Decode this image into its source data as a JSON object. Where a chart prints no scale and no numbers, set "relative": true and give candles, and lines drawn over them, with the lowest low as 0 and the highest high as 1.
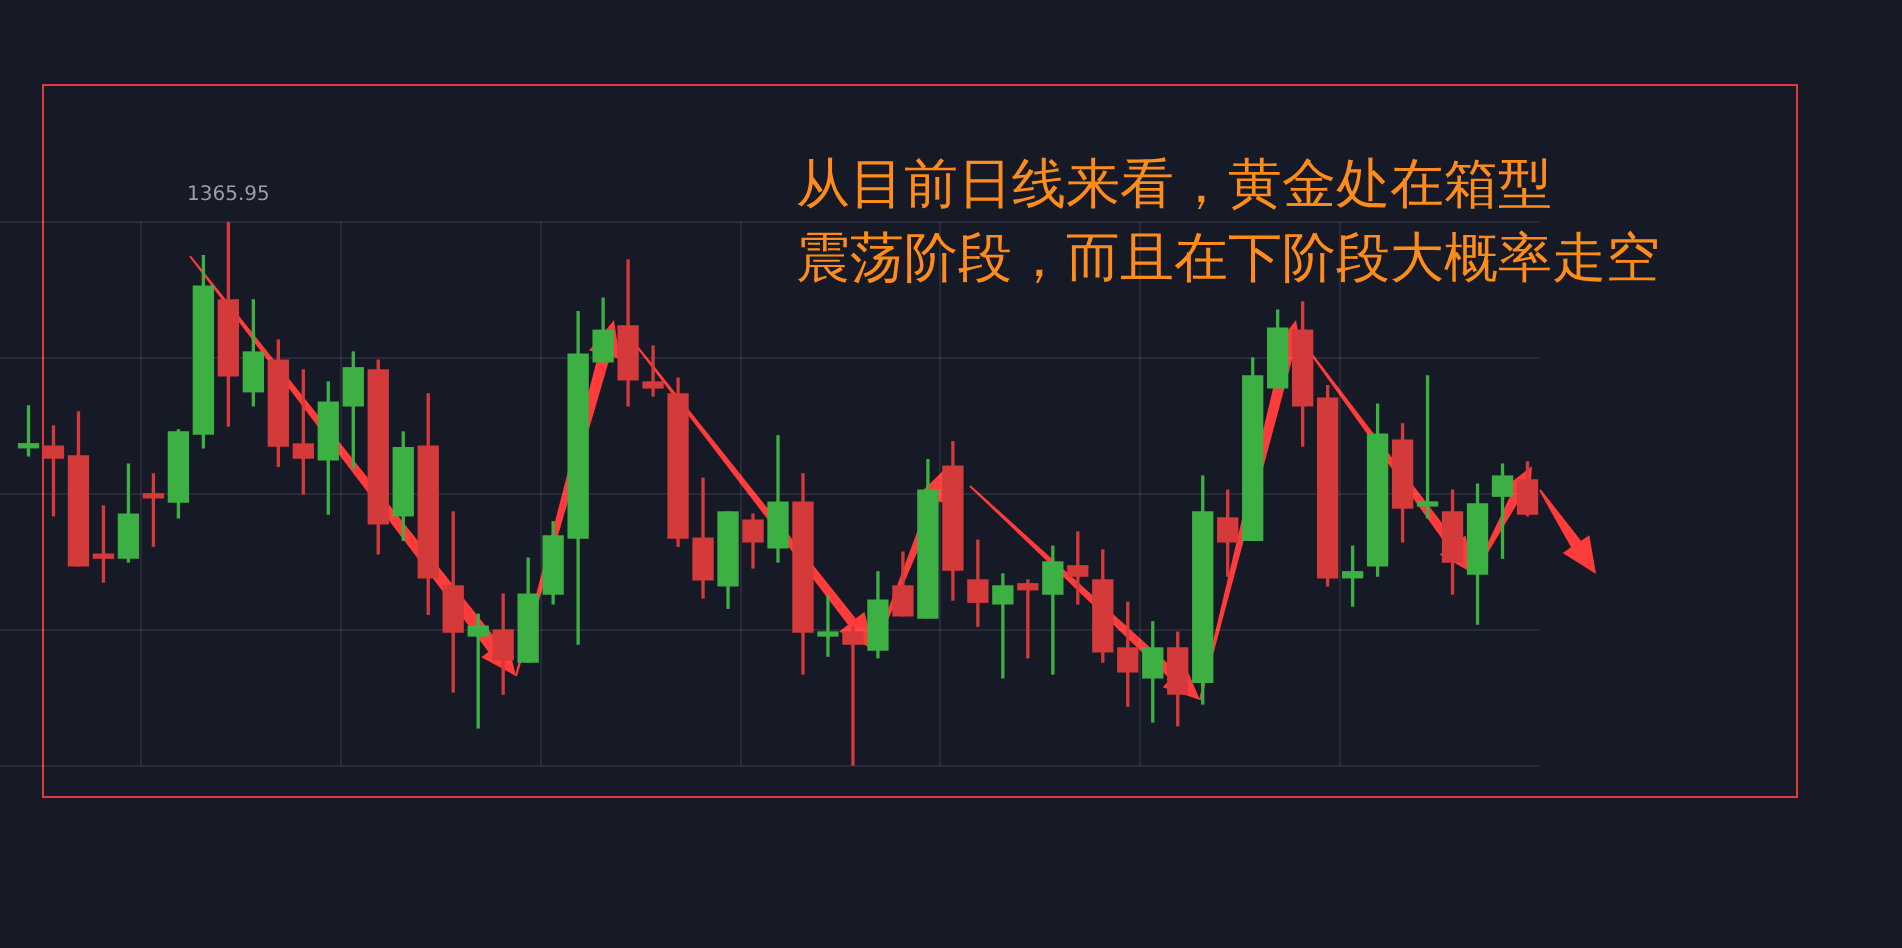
{
  "chart_data": {
    "type": "candlestick",
    "relative": true,
    "grid": true,
    "legend": false,
    "annotations": [
      "从目前日线来看，黄金处在箱型",
      "震荡阶段，而且在下阶段大概率走空",
      {
        "text": "1365.95",
        "y": 1
      }
    ],
    "categories": [
      null,
      null,
      null,
      null,
      null,
      null,
      null,
      null,
      null,
      null,
      null,
      null,
      null,
      null,
      null,
      null,
      null,
      null,
      null,
      null,
      null,
      null,
      null,
      null,
      null,
      null,
      null,
      null,
      null,
      null,
      null,
      null,
      null,
      null,
      null,
      null,
      null,
      null,
      null,
      null,
      null,
      null,
      null,
      null,
      null,
      null,
      null,
      null,
      null,
      null,
      null,
      null,
      null,
      null,
      null,
      null,
      null,
      null,
      null,
      null,
      null
    ],
    "ohlc": [
      [
        0.585,
        0.662,
        0.57,
        0.592
      ],
      [
        0.588,
        0.625,
        0.46,
        0.566
      ],
      [
        0.57,
        0.651,
        0.368,
        0.368
      ],
      [
        0.386,
        0.478,
        0.338,
        0.382
      ],
      [
        0.382,
        0.555,
        0.375,
        0.463
      ],
      [
        0.496,
        0.537,
        0.404,
        0.493
      ],
      [
        0.485,
        0.618,
        0.456,
        0.614
      ],
      [
        0.61,
        0.938,
        0.585,
        0.882
      ],
      [
        0.857,
        1,
        0.625,
        0.717
      ],
      [
        0.688,
        0.857,
        0.662,
        0.761
      ],
      [
        0.746,
        0.783,
        0.551,
        0.588
      ],
      [
        0.592,
        0.728,
        0.5,
        0.566
      ],
      [
        0.563,
        0.706,
        0.463,
        0.669
      ],
      [
        0.662,
        0.761,
        0.548,
        0.732
      ],
      [
        0.728,
        0.746,
        0.39,
        0.445
      ],
      [
        0.46,
        0.614,
        0.415,
        0.585
      ],
      [
        0.588,
        0.684,
        0.279,
        0.346
      ],
      [
        0.331,
        0.467,
        0.136,
        0.246
      ],
      [
        0.239,
        0.279,
        0.07,
        0.257
      ],
      [
        0.25,
        0.316,
        0.132,
        0.195
      ],
      [
        0.191,
        0.382,
        0.191,
        0.316
      ],
      [
        0.316,
        0.449,
        0.298,
        0.423
      ],
      [
        0.419,
        0.835,
        0.224,
        0.757
      ],
      [
        0.743,
        0.86,
        0.743,
        0.801
      ],
      [
        0.809,
        0.93,
        0.662,
        0.71
      ],
      [
        0.706,
        0.772,
        0.68,
        0.695
      ],
      [
        0.684,
        0.713,
        0.404,
        0.419
      ],
      [
        0.419,
        0.529,
        0.309,
        0.342
      ],
      [
        0.331,
        0.467,
        0.29,
        0.467
      ],
      [
        0.452,
        0.463,
        0.364,
        0.412
      ],
      [
        0.401,
        0.607,
        0.375,
        0.485
      ],
      [
        0.485,
        0.537,
        0.169,
        0.246
      ],
      [
        0.239,
        0.313,
        0.202,
        0.246
      ],
      [
        0.246,
        0.257,
        0,
        0.224
      ],
      [
        0.213,
        0.357,
        0.199,
        0.305
      ],
      [
        0.331,
        0.393,
        0.276,
        0.276
      ],
      [
        0.272,
        0.563,
        0.272,
        0.507
      ],
      [
        0.551,
        0.596,
        0.305,
        0.36
      ],
      [
        0.342,
        0.415,
        0.257,
        0.301
      ],
      [
        0.298,
        0.353,
        0.162,
        0.331
      ],
      [
        0.335,
        0.342,
        0.199,
        0.324
      ],
      [
        0.316,
        0.404,
        0.169,
        0.375
      ],
      [
        0.368,
        0.43,
        0.298,
        0.349
      ],
      [
        0.342,
        0.397,
        0.191,
        0.21
      ],
      [
        0.217,
        0.301,
        0.11,
        0.173
      ],
      [
        0.162,
        0.265,
        0.081,
        0.217
      ],
      [
        0.217,
        0.246,
        0.074,
        0.132
      ],
      [
        0.154,
        0.533,
        0.114,
        0.467
      ],
      [
        0.456,
        0.507,
        0.349,
        0.412
      ],
      [
        0.415,
        0.75,
        0.415,
        0.717
      ],
      [
        0.695,
        0.838,
        0.695,
        0.805
      ],
      [
        0.801,
        0.853,
        0.588,
        0.662
      ],
      [
        0.676,
        0.699,
        0.331,
        0.346
      ],
      [
        0.346,
        0.404,
        0.294,
        0.357
      ],
      [
        0.368,
        0.665,
        0.349,
        0.61
      ],
      [
        0.599,
        0.629,
        0.412,
        0.474
      ],
      [
        0.478,
        0.717,
        0.456,
        0.485
      ],
      [
        0.467,
        0.507,
        0.316,
        0.375
      ],
      [
        0.353,
        0.518,
        0.261,
        0.482
      ],
      [
        0.496,
        0.555,
        0.382,
        0.533
      ],
      [
        0.526,
        0.559,
        0.46,
        0.463
      ]
    ],
    "colors": [
      "#3cb043",
      "#d43a3a",
      "#d43a3a",
      "#d43a3a",
      "#3cb043",
      "#d43a3a",
      "#3cb043",
      "#3cb043",
      "#d43a3a",
      "#3cb043",
      "#d43a3a",
      "#d43a3a",
      "#3cb043",
      "#3cb043",
      "#d43a3a",
      "#3cb043",
      "#d43a3a",
      "#d43a3a",
      "#3cb043",
      "#d43a3a",
      "#3cb043",
      "#3cb043",
      "#3cb043",
      "#3cb043",
      "#d43a3a",
      "#d43a3a",
      "#d43a3a",
      "#d43a3a",
      "#3cb043",
      "#d43a3a",
      "#3cb043",
      "#d43a3a",
      "#3cb043",
      "#d43a3a",
      "#3cb043",
      "#d43a3a",
      "#3cb043",
      "#d43a3a",
      "#d43a3a",
      "#3cb043",
      "#d43a3a",
      "#3cb043",
      "#d43a3a",
      "#d43a3a",
      "#d43a3a",
      "#3cb043",
      "#d43a3a",
      "#3cb043",
      "#d43a3a",
      "#3cb043",
      "#3cb043",
      "#d43a3a",
      "#d43a3a",
      "#3cb043",
      "#3cb043",
      "#d43a3a",
      "#3cb043",
      "#d43a3a",
      "#3cb043",
      "#3cb043",
      "#d43a3a"
    ]
  }
}
